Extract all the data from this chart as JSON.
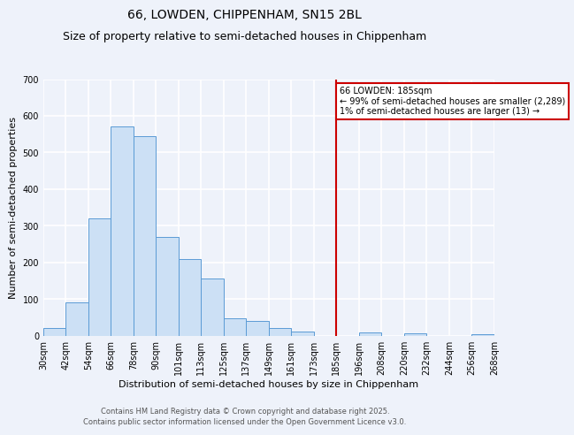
{
  "title": "66, LOWDEN, CHIPPENHAM, SN15 2BL",
  "subtitle": "Size of property relative to semi-detached houses in Chippenham",
  "xlabel": "Distribution of semi-detached houses by size in Chippenham",
  "ylabel": "Number of semi-detached properties",
  "tick_labels": [
    "30sqm",
    "42sqm",
    "54sqm",
    "66sqm",
    "78sqm",
    "90sqm",
    "101sqm",
    "113sqm",
    "125sqm",
    "137sqm",
    "149sqm",
    "161sqm",
    "173sqm",
    "185sqm",
    "196sqm",
    "208sqm",
    "220sqm",
    "232sqm",
    "244sqm",
    "256sqm",
    "268sqm"
  ],
  "bar_heights": [
    20,
    90,
    320,
    570,
    545,
    270,
    210,
    155,
    47,
    40,
    20,
    10,
    0,
    0,
    8,
    0,
    5,
    0,
    0,
    3
  ],
  "bar_color": "#cce0f5",
  "bar_edge_color": "#5b9bd5",
  "bg_color": "#eef2fa",
  "grid_color": "#ffffff",
  "vline_idx": 13,
  "vline_color": "#cc0000",
  "legend_title": "66 LOWDEN: 185sqm",
  "legend_line1": "← 99% of semi-detached houses are smaller (2,289)",
  "legend_line2": "1% of semi-detached houses are larger (13) →",
  "ylim": [
    0,
    700
  ],
  "yticks": [
    0,
    100,
    200,
    300,
    400,
    500,
    600,
    700
  ],
  "title_fontsize": 10,
  "subtitle_fontsize": 9,
  "axis_fontsize": 8,
  "tick_fontsize": 7,
  "footnote1": "Contains HM Land Registry data © Crown copyright and database right 2025.",
  "footnote2": "Contains public sector information licensed under the Open Government Licence v3.0."
}
